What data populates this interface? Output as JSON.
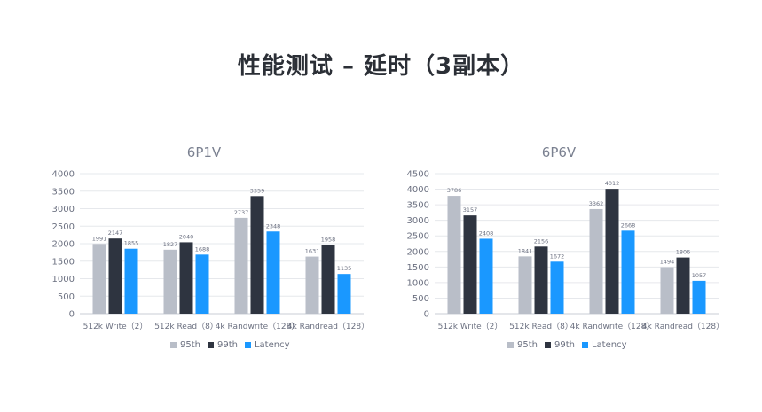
{
  "slide": {
    "title": "性能测试 – 延时（3副本）"
  },
  "colors": {
    "95th": "#b9bec8",
    "99th": "#2e3440",
    "Latency": "#1a98ff"
  },
  "chart_data": [
    {
      "type": "bar",
      "title": "6P1V",
      "categories": [
        "512k Write（2）",
        "512k Read（8）",
        "4k Randwrite（128）",
        "4k Randread（128）"
      ],
      "series": [
        {
          "name": "95th",
          "values": [
            1991,
            1827,
            2737,
            1631
          ]
        },
        {
          "name": "99th",
          "values": [
            2147,
            2040,
            3359,
            1958
          ]
        },
        {
          "name": "Latency",
          "values": [
            1855,
            1688,
            2348,
            1135
          ]
        }
      ],
      "ylim": [
        0,
        4000
      ],
      "yticks": [
        0,
        500,
        1000,
        1500,
        2000,
        2500,
        3000,
        3500,
        4000
      ],
      "grid": true,
      "legend": "bottom"
    },
    {
      "type": "bar",
      "title": "6P6V",
      "categories": [
        "512k Write（2）",
        "512k Read（8）",
        "4k Randwrite（128）",
        "4k Randread（128）"
      ],
      "series": [
        {
          "name": "95th",
          "values": [
            3786,
            1841,
            3362,
            1494
          ]
        },
        {
          "name": "99th",
          "values": [
            3157,
            2156,
            4012,
            1806
          ]
        },
        {
          "name": "Latency",
          "values": [
            2408,
            1672,
            2668,
            1057
          ]
        }
      ],
      "ylim": [
        0,
        4500
      ],
      "yticks": [
        0,
        500,
        1000,
        1500,
        2000,
        2500,
        3000,
        3500,
        4000,
        4500
      ],
      "grid": true,
      "legend": "bottom"
    }
  ]
}
